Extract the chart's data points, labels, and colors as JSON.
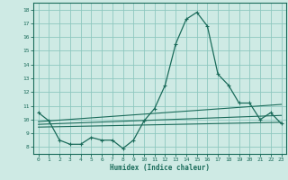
{
  "xlabel": "Humidex (Indice chaleur)",
  "background_color": "#ceeae4",
  "grid_color": "#8ec8bf",
  "line_color": "#1a6b5a",
  "xlim": [
    -0.5,
    23.5
  ],
  "ylim": [
    7.5,
    18.5
  ],
  "yticks": [
    8,
    9,
    10,
    11,
    12,
    13,
    14,
    15,
    16,
    17,
    18
  ],
  "xticks": [
    0,
    1,
    2,
    3,
    4,
    5,
    6,
    7,
    8,
    9,
    10,
    11,
    12,
    13,
    14,
    15,
    16,
    17,
    18,
    19,
    20,
    21,
    22,
    23
  ],
  "main_x": [
    0,
    1,
    2,
    3,
    4,
    5,
    6,
    7,
    8,
    9,
    10,
    11,
    12,
    13,
    14,
    15,
    16,
    17,
    18,
    19,
    20,
    21,
    22,
    23
  ],
  "main_y": [
    10.5,
    9.9,
    8.5,
    8.2,
    8.2,
    8.7,
    8.5,
    8.5,
    7.9,
    8.5,
    9.9,
    10.8,
    12.5,
    15.5,
    17.3,
    17.8,
    16.8,
    13.3,
    12.5,
    11.2,
    11.2,
    10.0,
    10.5,
    9.7
  ],
  "line1_x": [
    0,
    23
  ],
  "line1_y": [
    9.85,
    11.1
  ],
  "line2_x": [
    0,
    23
  ],
  "line2_y": [
    9.65,
    10.3
  ],
  "line3_x": [
    0,
    23
  ],
  "line3_y": [
    9.45,
    9.8
  ]
}
